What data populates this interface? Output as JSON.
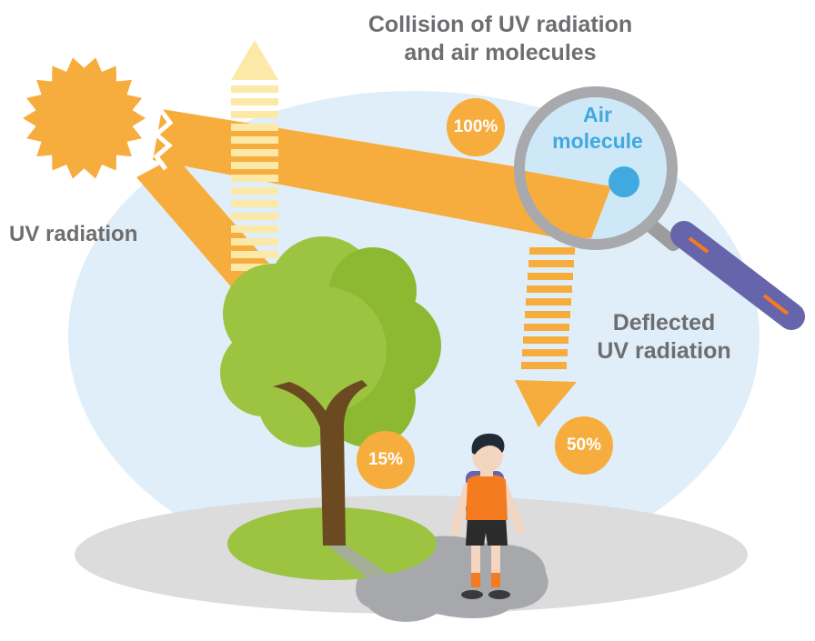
{
  "title": {
    "line1": "Collision of UV radiation",
    "line2": "and air molecules"
  },
  "labels": {
    "uv_radiation": "UV radiation",
    "deflected_line1": "Deflected",
    "deflected_line2": "UV radiation",
    "air_molecule_line1": "Air",
    "air_molecule_line2": "molecule"
  },
  "badges": {
    "hundred": "100%",
    "fifty": "50%",
    "fifteen": "15%"
  },
  "colors": {
    "sky": "#dfeef8",
    "ground": "#dcdcdd",
    "sun": "#f7ad3d",
    "beam": "#f7ad3d",
    "stripe_light": "#fde9a7",
    "tree_foliage": "#9cc440",
    "tree_trunk": "#6b4a22",
    "magnifier_handle": "#6665ab",
    "molecule": "#3fa9e0",
    "text": "#6d6e71"
  }
}
